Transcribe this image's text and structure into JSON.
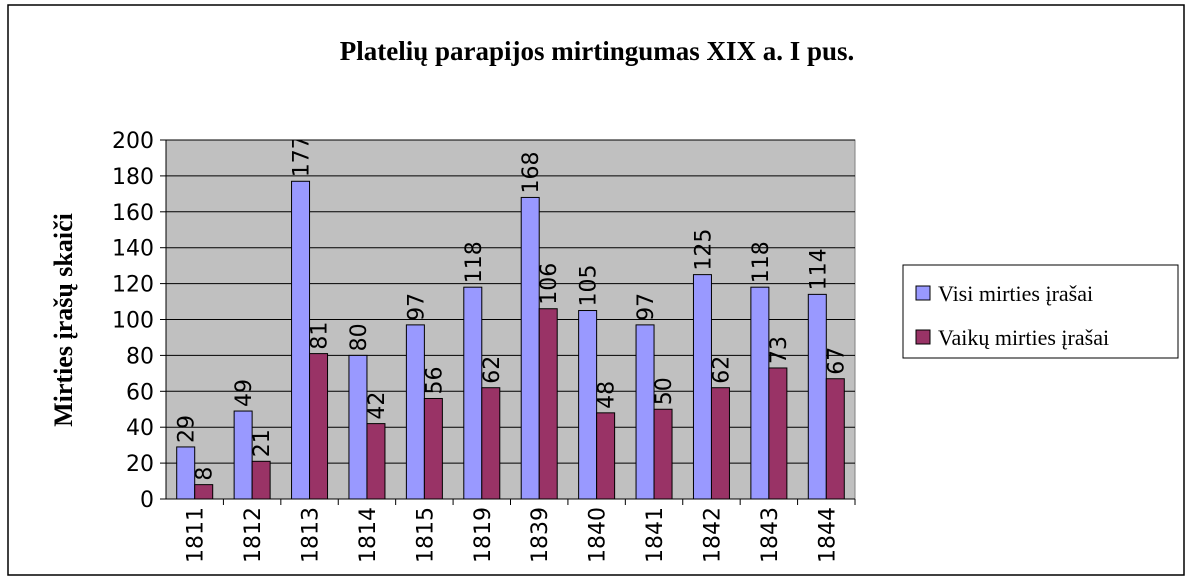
{
  "chart_data": {
    "type": "bar",
    "title": "Platelių parapijos mirtingumas XIX a. I pus.",
    "ylabel": "Mirties įrašų skaiči",
    "categories": [
      "1811",
      "1812",
      "1813",
      "1814",
      "1815",
      "1819",
      "1839",
      "1840",
      "1841",
      "1842",
      "1843",
      "1844"
    ],
    "series": [
      {
        "name": "Visi mirties įrašai",
        "color": "#9999ff",
        "values": [
          29,
          49,
          177,
          80,
          97,
          118,
          168,
          105,
          97,
          125,
          118,
          114
        ]
      },
      {
        "name": "Vaikų mirties įrašai",
        "color": "#993366",
        "values": [
          8,
          21,
          81,
          42,
          56,
          62,
          106,
          48,
          50,
          62,
          73,
          67
        ]
      }
    ],
    "ylim": [
      0,
      200
    ],
    "yticks": [
      0,
      20,
      40,
      60,
      80,
      100,
      120,
      140,
      160,
      180,
      200
    ],
    "grid": true,
    "legend": "right"
  }
}
